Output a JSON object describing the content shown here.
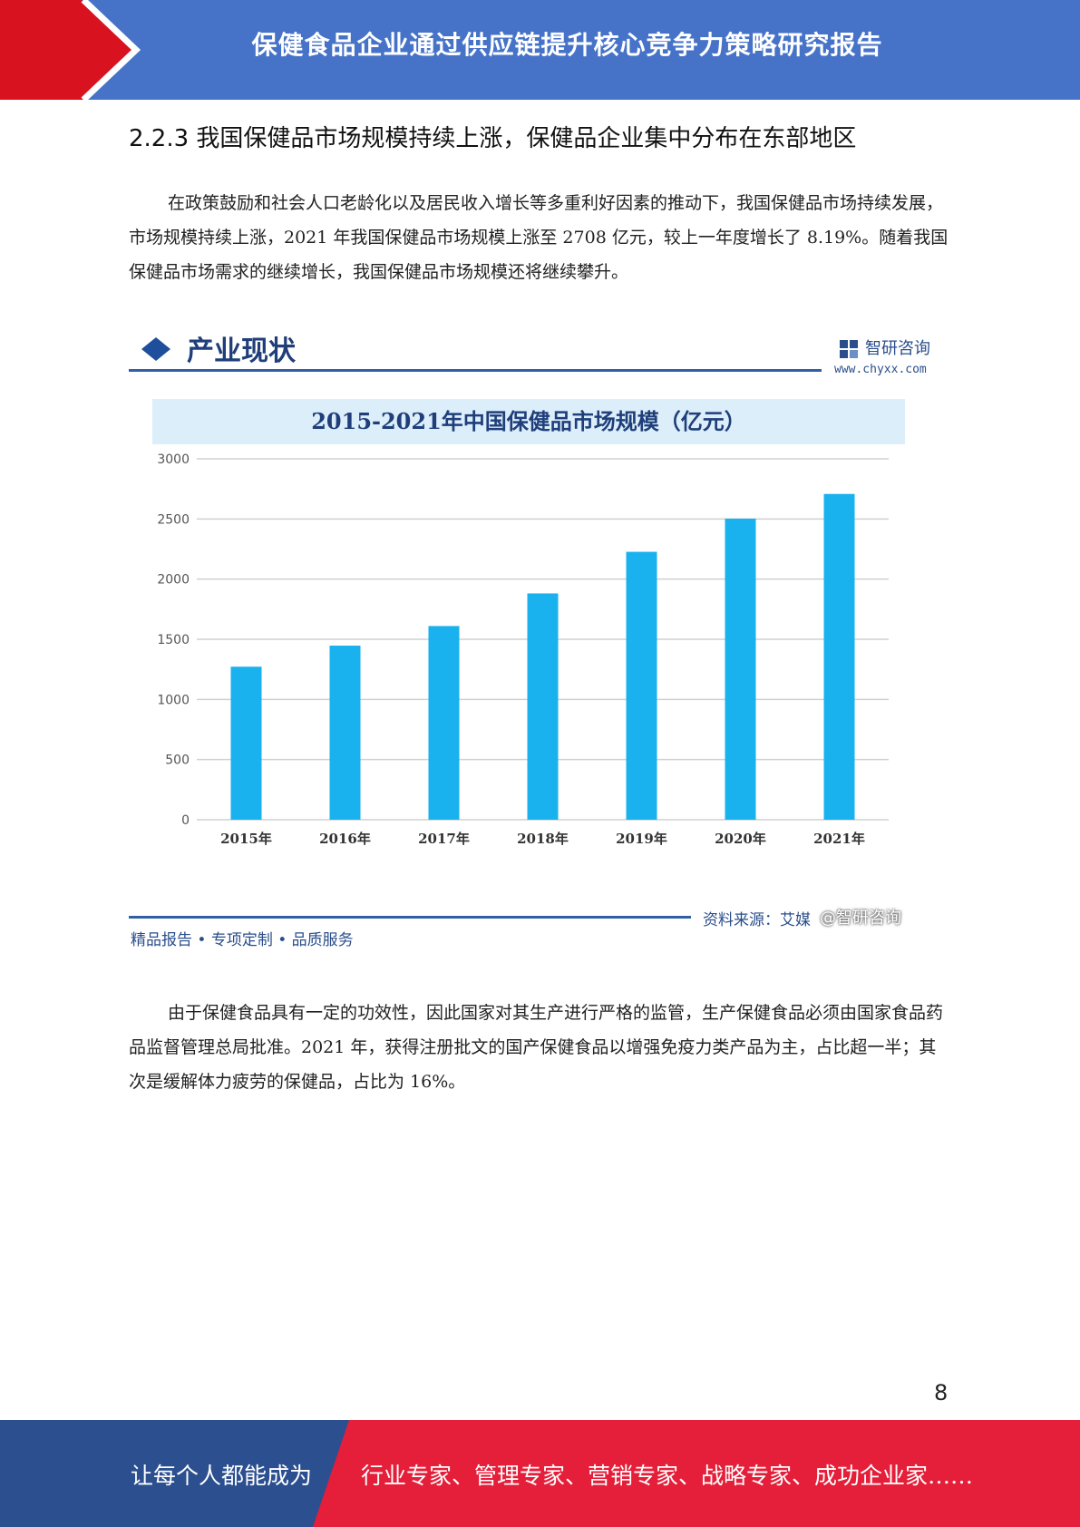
{
  "header": {
    "title": "保健食品企业通过供应链提升核心竞争力策略研究报告"
  },
  "section": {
    "heading": "2.2.3 我国保健品市场规模持续上涨，保健品企业集中分布在东部地区"
  },
  "paragraphs": [
    "在政策鼓励和社会人口老龄化以及居民收入增长等多重利好因素的推动下，我国保健品市场持续发展，市场规模持续上涨，2021 年我国保健品市场规模上涨至 2708 亿元，较上一年度增长了 8.19%。随着我国保健品市场需求的继续增长，我国保健品市场规模还将继续攀升。",
    "由于保健食品具有一定的功效性，因此国家对其生产进行严格的监管，生产保健食品必须由国家食品药品监督管理总局批准。2021 年，获得注册批文的国产保健食品以增强免疫力类产品为主，占比超一半；其次是缓解体力疲劳的保健品，占比为 16%。"
  ],
  "figure": {
    "header_title": "产业现状",
    "brand_name": "智研咨询",
    "brand_url": "www.chyxx.com",
    "footer_left": "精品报告 • 专项定制 • 品质服务",
    "source_label": "资料来源：艾媒",
    "attribution": "@智研咨询"
  },
  "chart_data": {
    "type": "bar",
    "title": "2015-2021年中国保健品市场规模（亿元）",
    "categories": [
      "2015年",
      "2016年",
      "2017年",
      "2018年",
      "2019年",
      "2020年",
      "2021年"
    ],
    "values": [
      1272,
      1447,
      1610,
      1881,
      2227,
      2503,
      2708
    ],
    "ylim": [
      0,
      3000
    ],
    "yticks": [
      0,
      500,
      1000,
      1500,
      2000,
      2500,
      3000
    ],
    "grid": true,
    "bar_color": "#1ab1ef",
    "xlabel": "",
    "ylabel": ""
  },
  "page_number": "8",
  "footer": {
    "left_text": "让每个人都能成为",
    "right_text": "行业专家、管理专家、营销专家、战略专家、成功企业家……"
  }
}
